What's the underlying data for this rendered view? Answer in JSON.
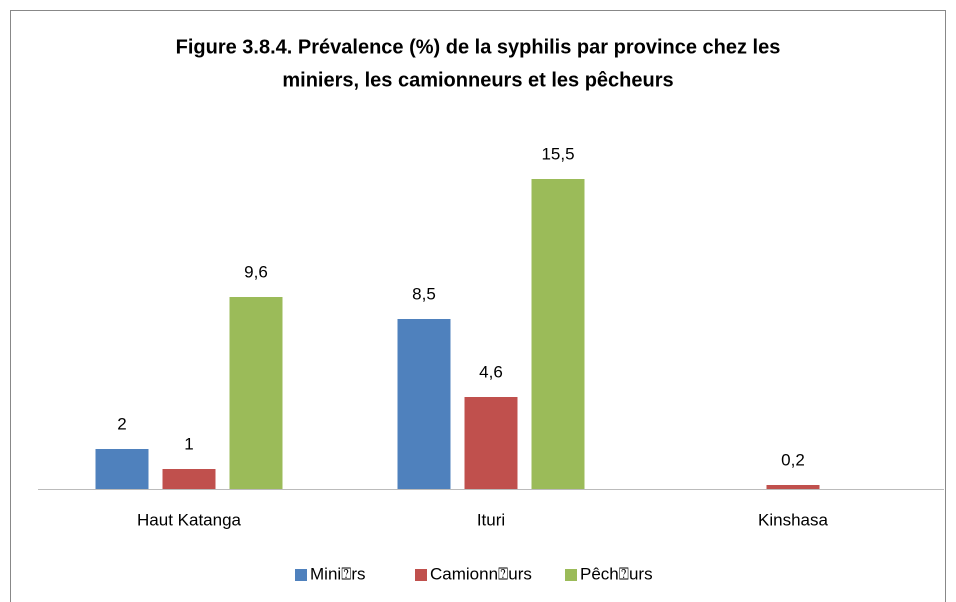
{
  "chart_data": {
    "type": "bar",
    "title": [
      "Figure 3.8.4. Prévalence (%) de la syphilis par province chez les",
      "miniers, les camionneurs et les pêcheurs"
    ],
    "categories": [
      "Haut Katanga",
      "Ituri",
      "Kinshasa"
    ],
    "series": [
      {
        "name": "Mini⍰rs",
        "color": "#4f81bd",
        "values": [
          2,
          8.5,
          null
        ],
        "value_labels": [
          "2",
          "8,5",
          null
        ]
      },
      {
        "name": "Camionn⍰urs",
        "color": "#c0504d",
        "values": [
          1,
          4.6,
          0.2
        ],
        "value_labels": [
          "1",
          "4,6",
          "0,2"
        ]
      },
      {
        "name": "Pêch⍰urs",
        "color": "#9bbb59",
        "values": [
          9.6,
          15.5,
          null
        ],
        "value_labels": [
          "9,6",
          "15,5",
          null
        ]
      }
    ],
    "ylim": [
      0,
      16
    ],
    "grid": false,
    "legend": "bottom"
  }
}
